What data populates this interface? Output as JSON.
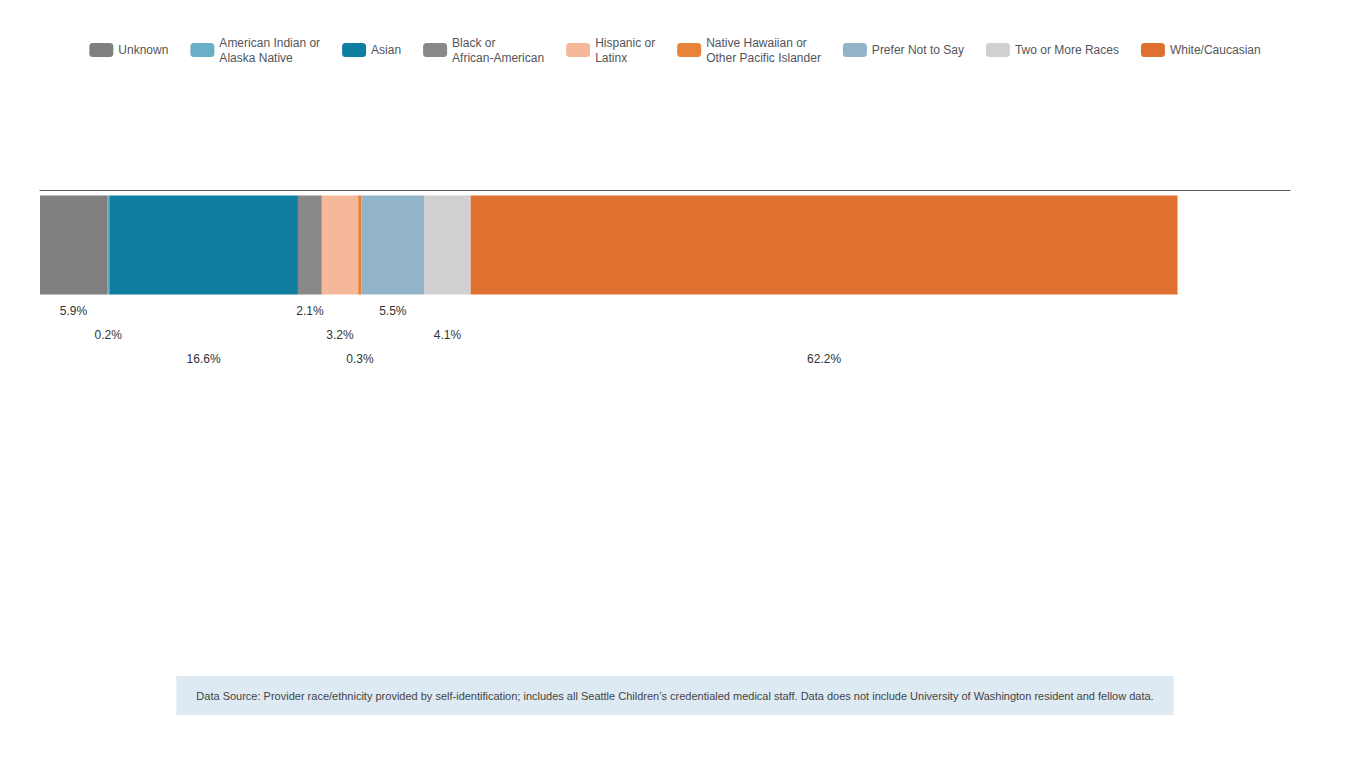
{
  "chart_data": {
    "type": "bar",
    "orientation": "horizontal",
    "stacked": true,
    "data_labels": true,
    "tick_labels": false,
    "grid": false,
    "legend": "top",
    "categories": [
      null
    ],
    "xlim": [
      0,
      110
    ],
    "series": [
      {
        "name": "Unknown",
        "color": "#7f7f7f",
        "values": [
          5.9
        ],
        "value_labels": [
          "5.9%"
        ]
      },
      {
        "name": "American Indian or\nAlaska Native",
        "color": "#6aafc8",
        "values": [
          0.2
        ],
        "value_labels": [
          "0.2%"
        ]
      },
      {
        "name": "Asian",
        "color": "#0e7fa0",
        "values": [
          16.6
        ],
        "value_labels": [
          "16.6%"
        ]
      },
      {
        "name": "Black or\nAfrican-American",
        "color": "#888888",
        "values": [
          2.1
        ],
        "value_labels": [
          "2.1%"
        ]
      },
      {
        "name": "Hispanic or\nLatinx",
        "color": "#f5b89a",
        "values": [
          3.2
        ],
        "value_labels": [
          "3.2%"
        ]
      },
      {
        "name": "Native Hawaiian or\nOther Pacific Islander",
        "color": "#e8833a",
        "values": [
          0.3
        ],
        "value_labels": [
          "0.3%"
        ]
      },
      {
        "name": "Prefer Not to Say",
        "color": "#91b4c8",
        "values": [
          5.5
        ],
        "value_labels": [
          "5.5%"
        ]
      },
      {
        "name": "Two or More Races",
        "color": "#d0d0d0",
        "values": [
          4.1
        ],
        "value_labels": [
          "4.1%"
        ]
      },
      {
        "name": "White/Caucasian",
        "color": "#e07030",
        "values": [
          62.2
        ],
        "value_labels": [
          "62.2%"
        ]
      }
    ],
    "annotations": [
      "Data Source: Provider race/ethnicity provided by self-identification; includes all Seattle Children’s credentialed medical staff. Data does not include University of Washington resident and fellow data."
    ]
  }
}
